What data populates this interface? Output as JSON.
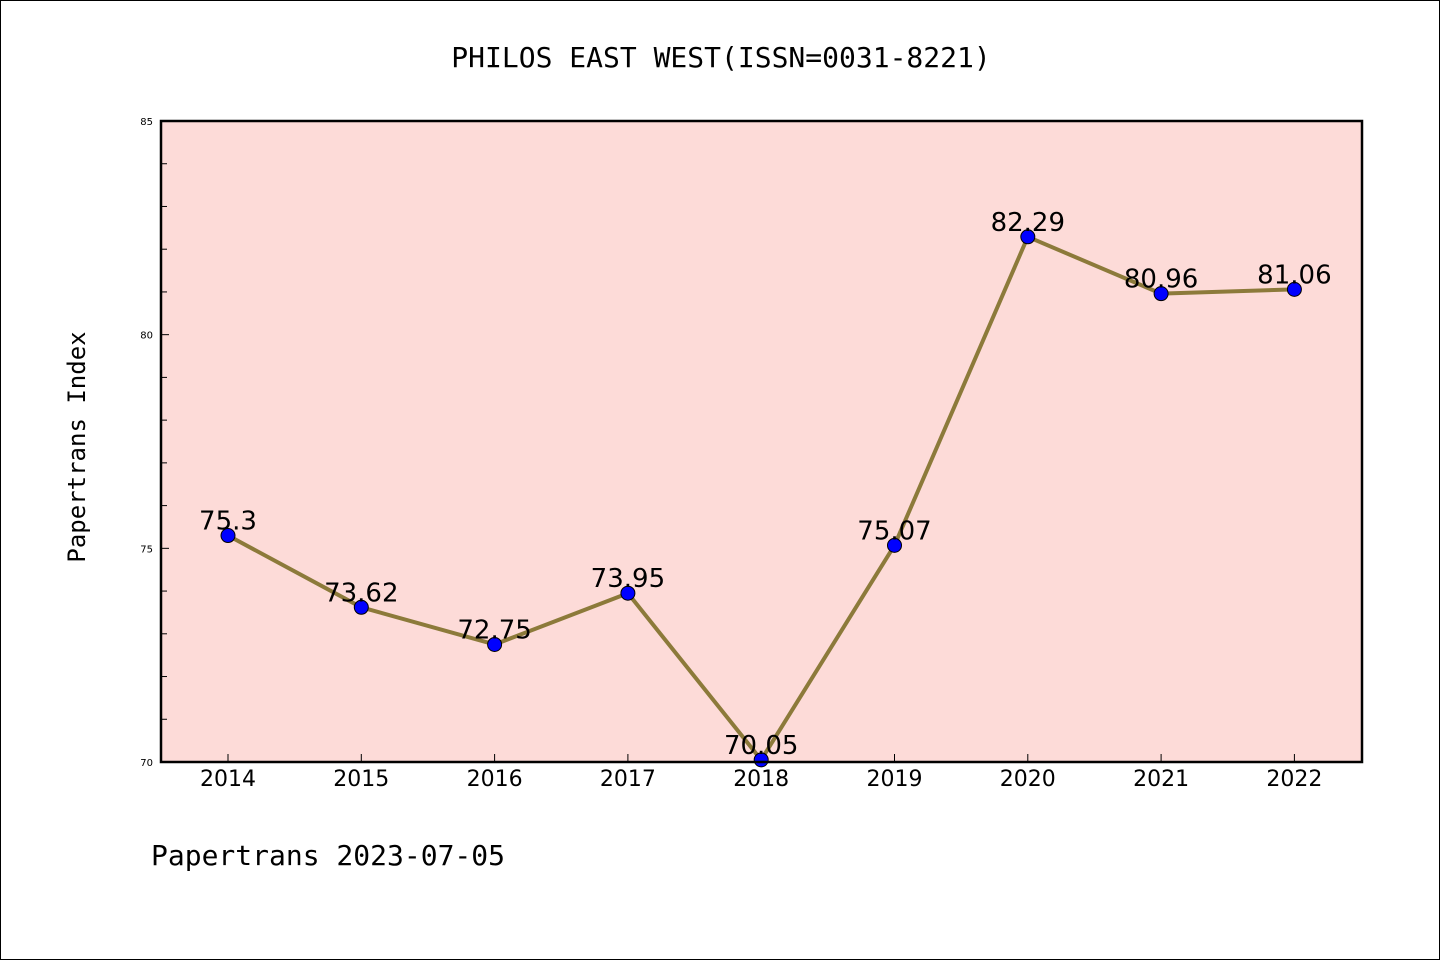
{
  "chart_data": {
    "type": "line",
    "title": "PHILOS EAST WEST(ISSN=0031-8221)",
    "xlabel": "",
    "ylabel": "Papertrans Index",
    "categories": [
      "2014",
      "2015",
      "2016",
      "2017",
      "2018",
      "2019",
      "2020",
      "2021",
      "2022"
    ],
    "series": [
      {
        "values": [
          75.3,
          73.62,
          72.75,
          73.95,
          70.05,
          75.07,
          82.29,
          80.96,
          81.06
        ]
      }
    ],
    "data_labels": [
      "75.3",
      "73.62",
      "72.75",
      "73.95",
      "70.05",
      "75.07",
      "82.29",
      "80.96",
      "81.06"
    ],
    "ylim": [
      70,
      85
    ],
    "yticks": [
      70,
      75,
      80,
      85
    ],
    "ytick_labels": [
      "70",
      "75",
      "80",
      "85"
    ],
    "grid": false,
    "footer": "Papertrans 2023-07-05",
    "colors": {
      "plot_background": "#fddbd8",
      "line": "#8c7a3a",
      "marker": "#0000ff"
    }
  }
}
